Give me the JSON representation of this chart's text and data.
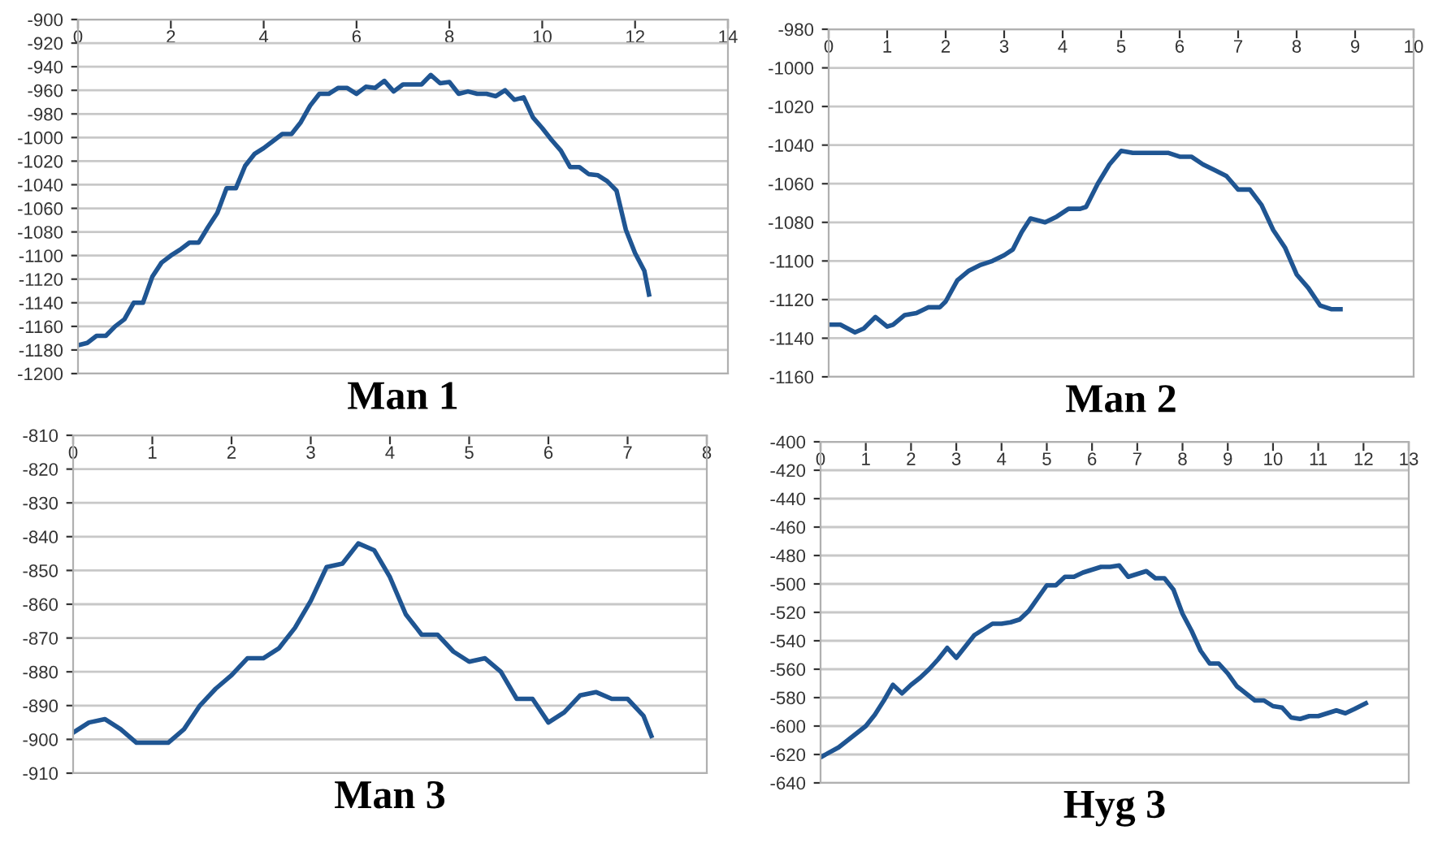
{
  "chart_data": [
    {
      "type": "line",
      "title": "Man 1",
      "xlim": [
        0,
        14
      ],
      "xticks": [
        0,
        2,
        4,
        6,
        8,
        10,
        12,
        14
      ],
      "ylim": [
        -1200,
        -900
      ],
      "yticks": [
        -1200,
        -1180,
        -1160,
        -1140,
        -1120,
        -1100,
        -1080,
        -1060,
        -1040,
        -1020,
        -1000,
        -980,
        -960,
        -940,
        -920,
        -900
      ],
      "grid": "y",
      "legend": false,
      "series": [
        {
          "color": "#1f5592",
          "x": [
            0,
            0.2,
            0.4,
            0.6,
            0.8,
            1.0,
            1.2,
            1.4,
            1.6,
            1.8,
            2.0,
            2.2,
            2.4,
            2.6,
            2.8,
            3.0,
            3.2,
            3.4,
            3.6,
            3.8,
            4.0,
            4.2,
            4.4,
            4.6,
            4.8,
            5.0,
            5.2,
            5.4,
            5.6,
            5.8,
            6.0,
            6.2,
            6.4,
            6.6,
            6.8,
            7.0,
            7.2,
            7.4,
            7.6,
            7.8,
            8.0,
            8.2,
            8.4,
            8.6,
            8.8,
            9.0,
            9.2,
            9.4,
            9.6,
            9.8,
            10.0,
            10.2,
            10.4,
            10.6,
            10.8,
            11.0,
            11.2,
            11.4,
            11.6,
            11.8,
            12.0,
            12.2,
            12.3
          ],
          "values": [
            -1176,
            -1174,
            -1168,
            -1168,
            -1160,
            -1154,
            -1140,
            -1140,
            -1118,
            -1106,
            -1100,
            -1095,
            -1089,
            -1089,
            -1076,
            -1064,
            -1043,
            -1043,
            -1024,
            -1014,
            -1009,
            -1003,
            -997,
            -997,
            -987,
            -973,
            -963,
            -963,
            -958,
            -958,
            -963,
            -957,
            -958,
            -952,
            -961,
            -955,
            -955,
            -955,
            -947,
            -954,
            -953,
            -963,
            -961,
            -963,
            -963,
            -965,
            -960,
            -968,
            -966,
            -983,
            -992,
            -1002,
            -1011,
            -1025,
            -1025,
            -1031,
            -1032,
            -1037,
            -1045,
            -1078,
            -1098,
            -1113,
            -1133
          ]
        }
      ]
    },
    {
      "type": "line",
      "title": "Man 2",
      "xlim": [
        0,
        10
      ],
      "xticks": [
        0,
        1,
        2,
        3,
        4,
        5,
        6,
        7,
        8,
        9,
        10
      ],
      "ylim": [
        -1160,
        -980
      ],
      "yticks": [
        -1160,
        -1140,
        -1120,
        -1100,
        -1080,
        -1060,
        -1040,
        -1020,
        -1000,
        -980
      ],
      "grid": "y",
      "legend": false,
      "series": [
        {
          "color": "#1f5592",
          "x": [
            0,
            0.2,
            0.45,
            0.6,
            0.8,
            1.0,
            1.1,
            1.3,
            1.5,
            1.7,
            1.9,
            2.0,
            2.2,
            2.4,
            2.6,
            2.8,
            3.0,
            3.15,
            3.3,
            3.45,
            3.7,
            3.9,
            4.1,
            4.3,
            4.4,
            4.6,
            4.8,
            5.0,
            5.2,
            5.5,
            5.8,
            6.0,
            6.2,
            6.4,
            6.6,
            6.8,
            7.0,
            7.2,
            7.4,
            7.6,
            7.8,
            8.0,
            8.2,
            8.4,
            8.6,
            8.75
          ],
          "values": [
            -1133,
            -1133,
            -1137,
            -1135,
            -1129,
            -1134,
            -1133,
            -1128,
            -1127,
            -1124,
            -1124,
            -1121,
            -1110,
            -1105,
            -1102,
            -1100,
            -1097,
            -1094,
            -1085,
            -1078,
            -1080,
            -1077,
            -1073,
            -1073,
            -1072,
            -1060,
            -1050,
            -1043,
            -1044,
            -1044,
            -1044,
            -1046,
            -1046,
            -1050,
            -1053,
            -1056,
            -1063,
            -1063,
            -1071,
            -1084,
            -1093,
            -1107,
            -1114,
            -1123,
            -1125,
            -1125
          ]
        }
      ]
    },
    {
      "type": "line",
      "title": "Man 3",
      "xlim": [
        0,
        8
      ],
      "xticks": [
        0,
        1,
        2,
        3,
        4,
        5,
        6,
        7,
        8
      ],
      "ylim": [
        -910,
        -810
      ],
      "yticks": [
        -910,
        -900,
        -890,
        -880,
        -870,
        -860,
        -850,
        -840,
        -830,
        -820,
        -810
      ],
      "grid": "y",
      "legend": false,
      "series": [
        {
          "color": "#1f5592",
          "x": [
            0,
            0.2,
            0.4,
            0.6,
            0.8,
            1.0,
            1.2,
            1.4,
            1.6,
            1.8,
            2.0,
            2.2,
            2.4,
            2.6,
            2.8,
            3.0,
            3.2,
            3.4,
            3.6,
            3.8,
            4.0,
            4.2,
            4.4,
            4.6,
            4.8,
            5.0,
            5.2,
            5.4,
            5.6,
            5.8,
            6.0,
            6.2,
            6.4,
            6.6,
            6.8,
            7.0,
            7.2,
            7.3
          ],
          "values": [
            -898,
            -895,
            -894,
            -897,
            -901,
            -901,
            -901,
            -897,
            -890,
            -885,
            -881,
            -876,
            -876,
            -873,
            -867,
            -859,
            -849,
            -848,
            -842,
            -844,
            -852,
            -863,
            -869,
            -869,
            -874,
            -877,
            -876,
            -880,
            -888,
            -888,
            -895,
            -892,
            -887,
            -886,
            -888,
            -888,
            -893,
            -899
          ]
        }
      ]
    },
    {
      "type": "line",
      "title": "Hyg 3",
      "xlim": [
        0,
        13
      ],
      "xticks": [
        0,
        1,
        2,
        3,
        4,
        5,
        6,
        7,
        8,
        9,
        10,
        11,
        12,
        13
      ],
      "ylim": [
        -640,
        -400
      ],
      "yticks": [
        -640,
        -620,
        -600,
        -580,
        -560,
        -540,
        -520,
        -500,
        -480,
        -460,
        -440,
        -420,
        -400
      ],
      "grid": "y",
      "legend": false,
      "series": [
        {
          "color": "#1f5592",
          "x": [
            0,
            0.4,
            0.6,
            0.8,
            1.0,
            1.2,
            1.4,
            1.6,
            1.8,
            2.0,
            2.2,
            2.4,
            2.6,
            2.8,
            3.0,
            3.2,
            3.4,
            3.6,
            3.8,
            4.0,
            4.2,
            4.4,
            4.6,
            4.8,
            5.0,
            5.2,
            5.4,
            5.6,
            5.8,
            6.0,
            6.2,
            6.4,
            6.6,
            6.8,
            7.0,
            7.2,
            7.4,
            7.6,
            7.8,
            8.0,
            8.2,
            8.4,
            8.6,
            8.8,
            9.0,
            9.2,
            9.4,
            9.6,
            9.8,
            10.0,
            10.2,
            10.4,
            10.6,
            10.8,
            11.0,
            11.2,
            11.4,
            11.6,
            11.8,
            12.05
          ],
          "values": [
            -622,
            -615,
            -610,
            -605,
            -600,
            -592,
            -582,
            -571,
            -577,
            -571,
            -566,
            -560,
            -553,
            -545,
            -552,
            -544,
            -536,
            -532,
            -528,
            -528,
            -527,
            -525,
            -519,
            -510,
            -501,
            -501,
            -495,
            -495,
            -492,
            -490,
            -488,
            -488,
            -487,
            -495,
            -493,
            -491,
            -496,
            -496,
            -504,
            -521,
            -533,
            -547,
            -556,
            -556,
            -563,
            -572,
            -577,
            -582,
            -582,
            -586,
            -587,
            -594,
            -595,
            -593,
            -593,
            -591,
            -589,
            -591,
            -588,
            -584
          ]
        }
      ]
    }
  ]
}
